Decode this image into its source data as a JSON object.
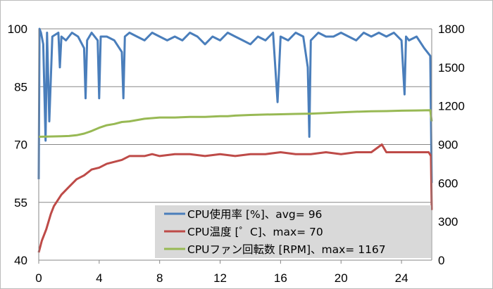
{
  "chart_data": {
    "type": "line",
    "grid": "horizontal",
    "legend_position": "bottom-right",
    "x_axis": {
      "ticks": [
        "0",
        "4",
        "8",
        "12",
        "16",
        "20",
        "24"
      ],
      "range": [
        0,
        26
      ]
    },
    "y_axis_left": {
      "ticks": [
        "40",
        "55",
        "70",
        "85",
        "100"
      ],
      "range": [
        40,
        100
      ]
    },
    "y_axis_right": {
      "ticks": [
        "0",
        "300",
        "600",
        "900",
        "1200",
        "1500",
        "1800"
      ],
      "range": [
        0,
        1800
      ]
    },
    "series": [
      {
        "name": "CPU使用率 [%]、avg= 96",
        "color": "#4a7ebb",
        "axis": "left",
        "x": [
          0,
          0.05,
          0.15,
          0.3,
          0.45,
          0.55,
          0.7,
          0.9,
          1.3,
          1.4,
          1.5,
          1.8,
          2.2,
          2.6,
          3.0,
          3.1,
          3.2,
          3.5,
          3.9,
          4.0,
          4.1,
          4.5,
          5.0,
          5.5,
          5.6,
          5.7,
          6.0,
          6.5,
          7.0,
          7.5,
          8.0,
          8.5,
          9.0,
          9.5,
          10.0,
          10.5,
          11.0,
          11.5,
          12.0,
          12.5,
          13.0,
          13.5,
          14.0,
          14.5,
          15.0,
          15.5,
          15.8,
          16.0,
          16.5,
          17.0,
          17.5,
          17.8,
          17.9,
          18.0,
          18.5,
          19.0,
          19.5,
          20.0,
          20.5,
          21.0,
          21.5,
          22.0,
          22.5,
          23.0,
          23.5,
          24.0,
          24.2,
          24.3,
          24.5,
          25.0,
          25.5,
          25.9,
          26.0
        ],
        "y": [
          61,
          100,
          99,
          96,
          71,
          99,
          76,
          98,
          99,
          90,
          98,
          97,
          99,
          98,
          95,
          82,
          97,
          99,
          97,
          82,
          98,
          98,
          97,
          94,
          82,
          98,
          99,
          98,
          97,
          99,
          98,
          97,
          98,
          97,
          99,
          98,
          96,
          98,
          97,
          99,
          98,
          97,
          96,
          98,
          97,
          99,
          81,
          98,
          97,
          99,
          98,
          90,
          72,
          97,
          99,
          98,
          98,
          99,
          98,
          97,
          99,
          98,
          99,
          98,
          99,
          97,
          83,
          98,
          97,
          98,
          95,
          93,
          60
        ]
      },
      {
        "name": "CPU温度 [゜C]、max= 70",
        "color": "#be4b48",
        "axis": "left",
        "x": [
          0,
          0.2,
          0.5,
          0.8,
          1.0,
          1.5,
          2.0,
          2.5,
          3.0,
          3.5,
          4.0,
          4.5,
          5.0,
          5.5,
          6.0,
          6.5,
          7.0,
          7.5,
          8.0,
          9.0,
          10.0,
          11.0,
          12.0,
          13.0,
          14.0,
          15.0,
          16.0,
          17.0,
          18.0,
          19.0,
          20.0,
          21.0,
          22.0,
          22.7,
          23.0,
          24.0,
          25.0,
          25.8,
          25.95,
          26.0
        ],
        "y": [
          42,
          45,
          48,
          52,
          54,
          57,
          59,
          61,
          62,
          63.5,
          64,
          65,
          65.5,
          66,
          67,
          67,
          67,
          67.5,
          67,
          67.5,
          67.5,
          67,
          67.5,
          67,
          67.5,
          67.5,
          68,
          67.5,
          67.5,
          68,
          67.5,
          68,
          68,
          70,
          68,
          68,
          68,
          68,
          67,
          53
        ]
      },
      {
        "name": "CPUファン回転数 [RPM]、max= 1167",
        "color": "#98b954",
        "axis": "right",
        "x": [
          0,
          0.5,
          1.0,
          1.5,
          2.0,
          2.5,
          3.0,
          3.5,
          4.0,
          4.5,
          5.0,
          5.5,
          6.0,
          7.0,
          8.0,
          9.0,
          10.0,
          11.0,
          12.0,
          12.5,
          13.0,
          14.0,
          15.0,
          16.0,
          17.0,
          18.0,
          19.0,
          20.0,
          21.0,
          22.0,
          23.0,
          24.0,
          25.0,
          25.9,
          26.0
        ],
        "y": [
          960,
          962,
          963,
          964,
          966,
          972,
          985,
          1005,
          1030,
          1050,
          1060,
          1075,
          1080,
          1100,
          1110,
          1110,
          1115,
          1115,
          1120,
          1120,
          1125,
          1130,
          1133,
          1135,
          1138,
          1140,
          1145,
          1150,
          1155,
          1158,
          1160,
          1163,
          1165,
          1167,
          1080
        ]
      }
    ]
  }
}
